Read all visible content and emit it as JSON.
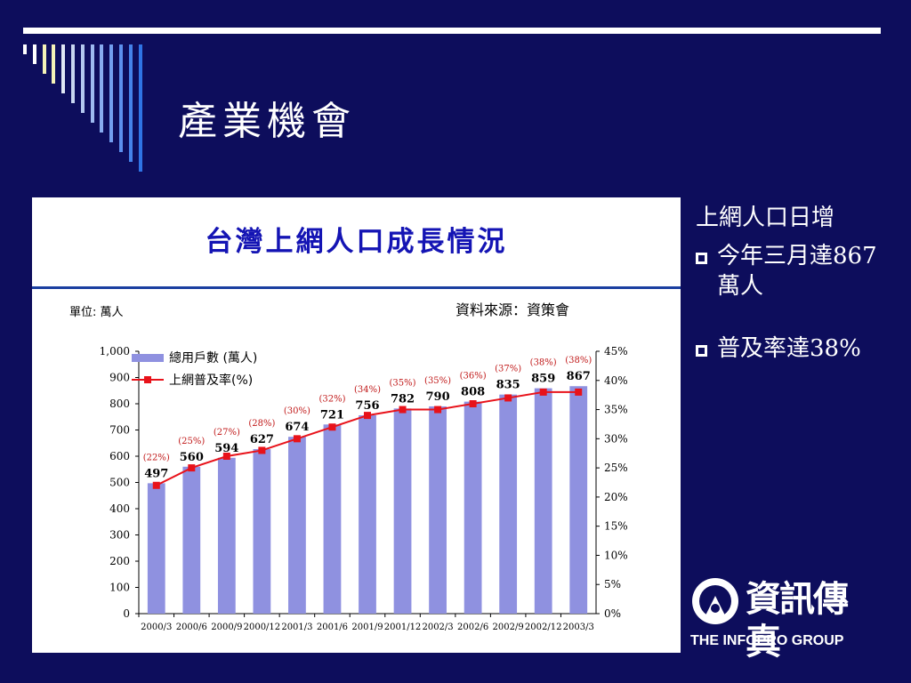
{
  "slide": {
    "title": "產業機會",
    "colors": {
      "background": "#0d0d5c",
      "text": "#ffffff",
      "chart_title": "#1414b4",
      "bar": "#8f91e0",
      "line": "#e8121a"
    }
  },
  "chart_title": "台灣上網人口成長情況",
  "unit_label": "單位: 萬人",
  "source_label": "資料來源：資策會",
  "legend": {
    "bar_label": "總用戶數 (萬人)",
    "line_label": "上網普及率(%)"
  },
  "chart_data": {
    "type": "bar",
    "title": "台灣上網人口成長情況",
    "categories": [
      "2000/3",
      "2000/6",
      "2000/9",
      "2000/12",
      "2001/3",
      "2001/6",
      "2001/9",
      "2001/12",
      "2002/3",
      "2002/6",
      "2002/9",
      "2002/12",
      "2003/3"
    ],
    "series": [
      {
        "name": "總用戶數 (萬人)",
        "type": "bar",
        "axis": "left",
        "values": [
          497,
          560,
          594,
          627,
          674,
          721,
          756,
          782,
          790,
          808,
          835,
          859,
          867
        ]
      },
      {
        "name": "上網普及率(%)",
        "type": "line",
        "axis": "right",
        "values": [
          22,
          25,
          27,
          28,
          30,
          32,
          34,
          35,
          35,
          36,
          37,
          38,
          38
        ]
      }
    ],
    "y_left": {
      "min": 0,
      "max": 1000,
      "step": 100,
      "ticks": [
        "0",
        "100",
        "200",
        "300",
        "400",
        "500",
        "600",
        "700",
        "800",
        "900",
        "1,000"
      ]
    },
    "y_right": {
      "min": 0,
      "max": 45,
      "step": 5,
      "ticks": [
        "0%",
        "5%",
        "10%",
        "15%",
        "20%",
        "25%",
        "30%",
        "35%",
        "40%",
        "45%"
      ]
    },
    "bar_labels": [
      "497",
      "560",
      "594",
      "627",
      "674",
      "721",
      "756",
      "782",
      "790",
      "808",
      "835",
      "859",
      "867"
    ],
    "line_labels": [
      "(22%)",
      "(25%)",
      "(27%)",
      "(28%)",
      "(30%)",
      "(32%)",
      "(34%)",
      "(35%)",
      "(35%)",
      "(36%)",
      "(37%)",
      "(38%)",
      "(38%)"
    ],
    "legend_position": "top-left",
    "grid": false
  },
  "side": {
    "heading": "上網人口日增",
    "bullets": [
      {
        "text": "今年三月達867萬人"
      },
      {
        "text": "普及率達38%"
      }
    ]
  },
  "logo": {
    "cn_text": "資訊傳真",
    "en_text": "THE INFOPRO GROUP"
  }
}
